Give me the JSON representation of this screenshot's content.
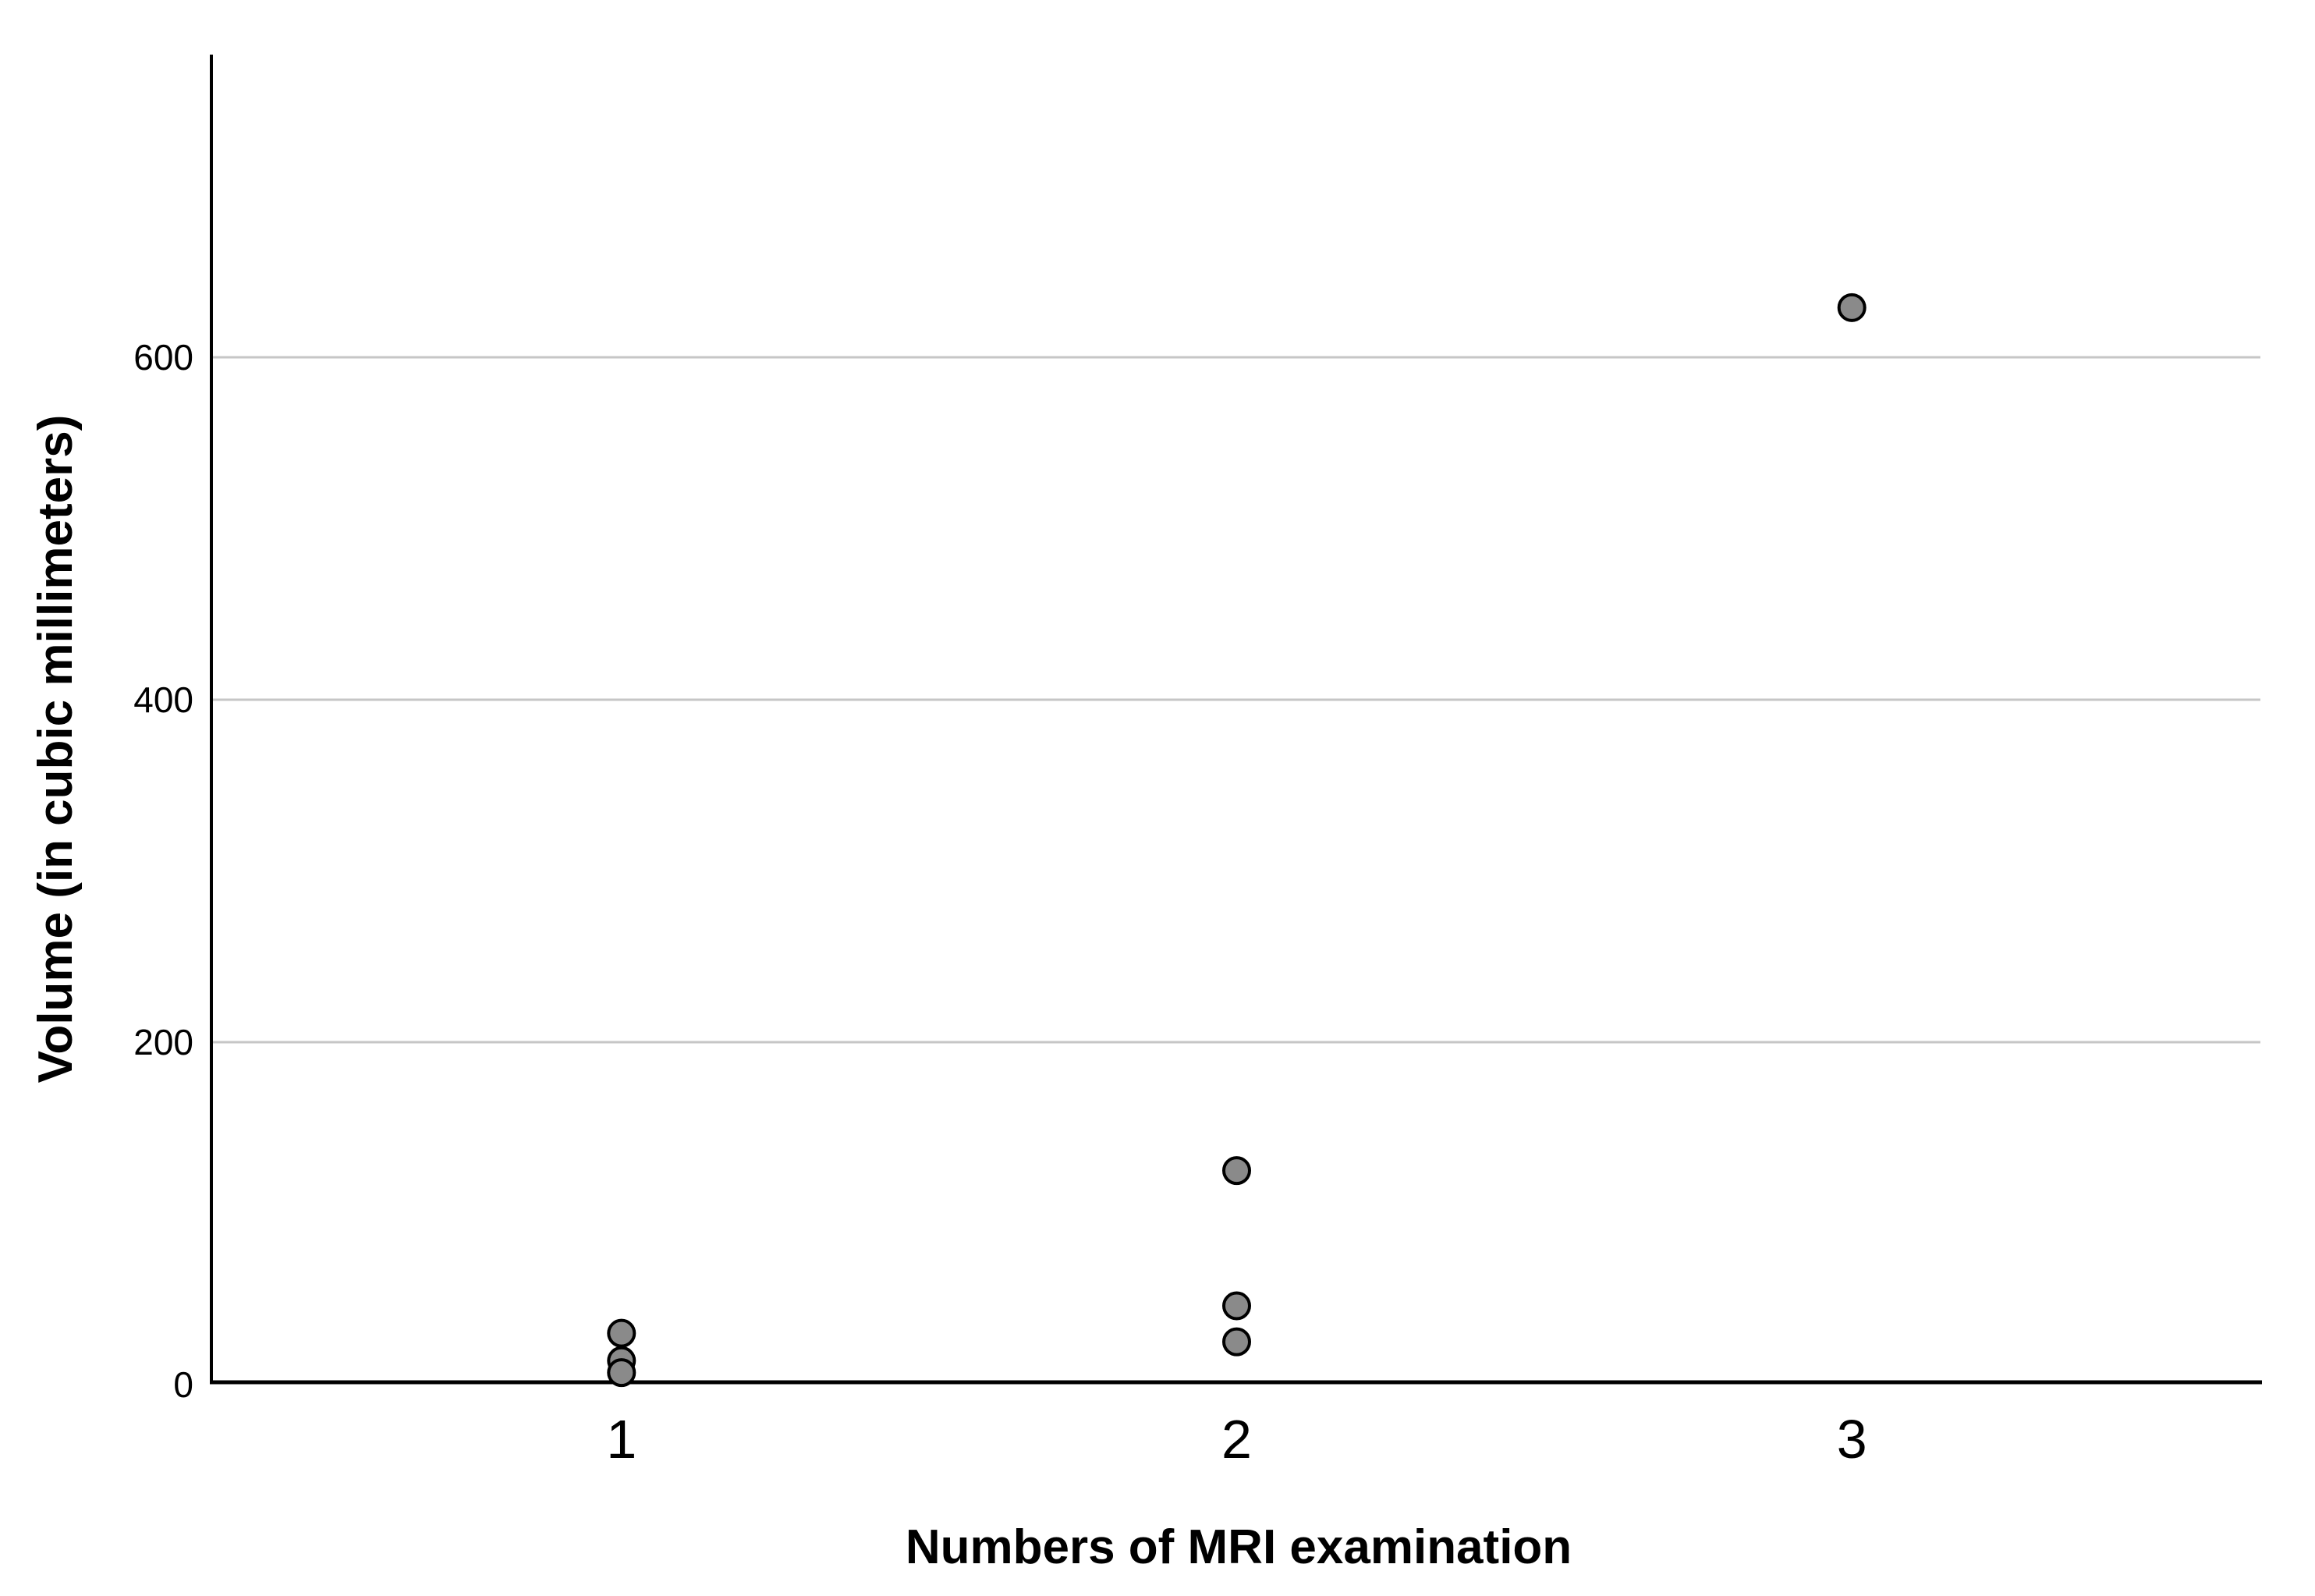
{
  "chart_data": {
    "type": "scatter",
    "title": "",
    "xlabel": "Numbers of MRI examination",
    "ylabel": "Volume (in cubic millimeters)",
    "x_ticks": [
      {
        "label": "1",
        "value": 1
      },
      {
        "label": "2",
        "value": 2
      },
      {
        "label": "3",
        "value": 3
      }
    ],
    "y_ticks": [
      {
        "label": "0",
        "value": 0
      },
      {
        "label": "200",
        "value": 200
      },
      {
        "label": "400",
        "value": 400
      },
      {
        "label": "600",
        "value": 600
      }
    ],
    "gridline_values": [
      200,
      400,
      600
    ],
    "ylim": [
      0,
      775
    ],
    "grid": "horizontal",
    "legend": "none",
    "points": [
      {
        "x": 1,
        "y": 30
      },
      {
        "x": 1,
        "y": 14
      },
      {
        "x": 1,
        "y": 7
      },
      {
        "x": 2,
        "y": 125
      },
      {
        "x": 2,
        "y": 46
      },
      {
        "x": 2,
        "y": 25
      },
      {
        "x": 3,
        "y": 629
      }
    ],
    "colors": {
      "background": "#ffffff",
      "point_fill": "#8a8a8a",
      "point_stroke": "#000000",
      "gridline": "#c6c6c6",
      "axis": "#000000",
      "text": "#000000"
    }
  }
}
